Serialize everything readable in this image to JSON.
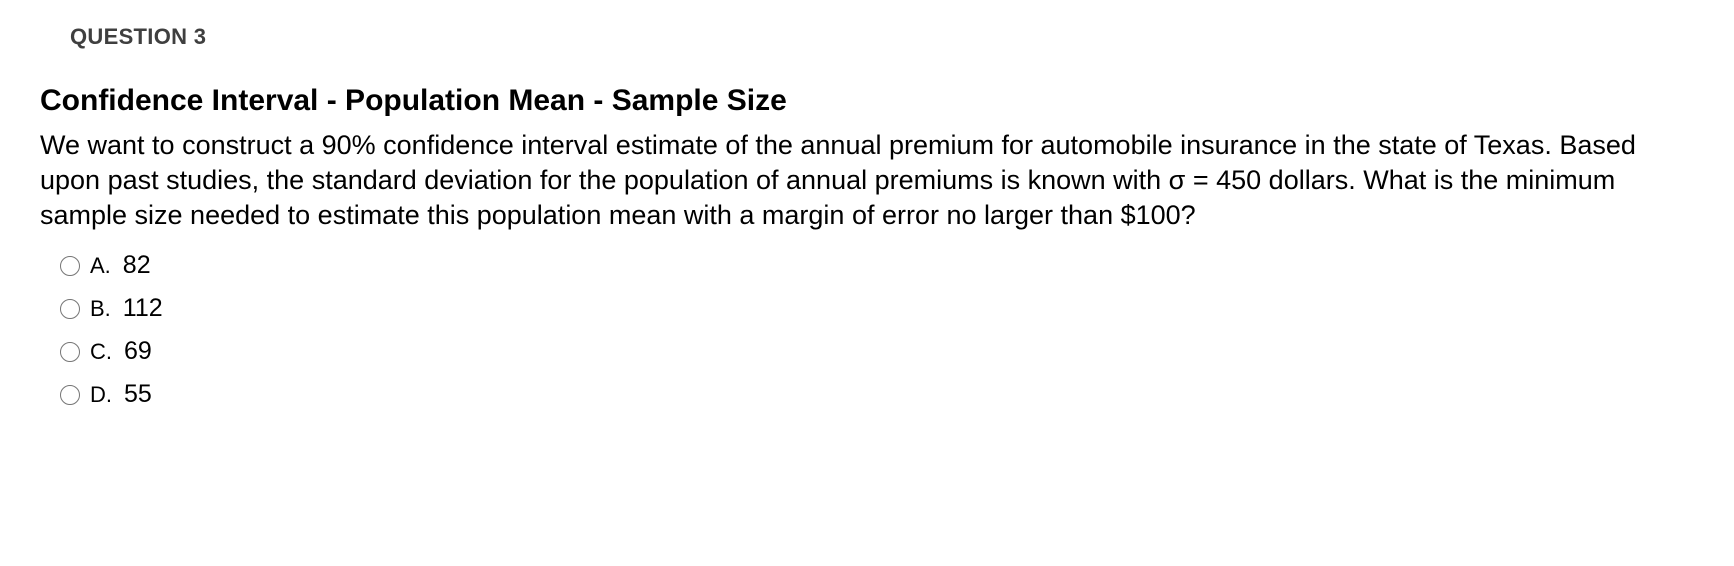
{
  "question": {
    "number_label": "QUESTION 3",
    "title": "Confidence Interval - Population Mean - Sample Size",
    "body": "We want to construct a 90% confidence interval estimate of the annual premium for automobile insurance in the state of Texas. Based upon past studies, the standard deviation for the population of annual premiums is known with σ = 450 dollars. What is the minimum sample size needed to estimate this population mean with a margin of error no larger than $100?",
    "options": [
      {
        "letter": "A.",
        "value": "82"
      },
      {
        "letter": "B.",
        "value": "112"
      },
      {
        "letter": "C.",
        "value": "69"
      },
      {
        "letter": "D.",
        "value": "55"
      }
    ]
  },
  "colors": {
    "background": "#ffffff",
    "heading_muted": "#3f3f3f",
    "text": "#000000"
  },
  "typography": {
    "question_number_fontsize": 22,
    "title_fontsize": 30,
    "body_fontsize": 27,
    "option_letter_fontsize": 22,
    "option_value_fontsize": 25
  }
}
